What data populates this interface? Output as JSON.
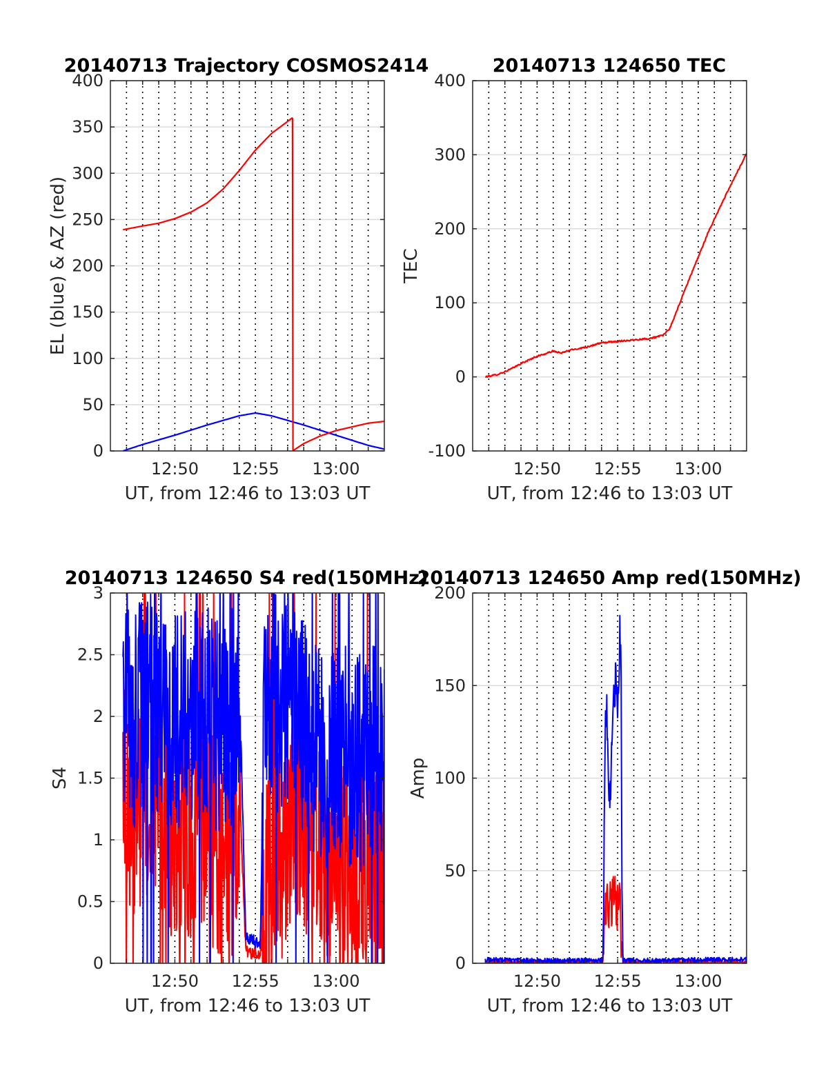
{
  "figure": {
    "subplot_titles": [
      "20140713 Trajectory COSMOS2414",
      "20140713 124650 TEC",
      "20140713 124650 S4 red(150MHz)",
      "20140713 124650 Amp red(150MHz)"
    ]
  },
  "chart_data": [
    {
      "type": "line",
      "title": "20140713 Trajectory COSMOS2414",
      "xlabel": "UT, from 12:46 to 13:03 UT",
      "ylabel": "EL (blue) & AZ (red)",
      "x_unit": "minutes after 12:46 UT",
      "xlim": [
        0,
        17
      ],
      "ylim": [
        0,
        400
      ],
      "x_ticks": [
        {
          "value": 4,
          "label": "12:50"
        },
        {
          "value": 9,
          "label": "12:55"
        },
        {
          "value": 14,
          "label": "13:00"
        }
      ],
      "y_ticks": [
        "0",
        "50",
        "100",
        "150",
        "200",
        "250",
        "300",
        "350",
        "400"
      ],
      "y_tick_values": [
        0,
        50,
        100,
        150,
        200,
        250,
        300,
        350,
        400
      ],
      "grid": {
        "horizontal": "solid light gray",
        "vertical": "dotted black every minute"
      },
      "series": [
        {
          "color": "#0000ff",
          "x": [
            0.78,
            2,
            4,
            6,
            8,
            9,
            10,
            12,
            14,
            16,
            17
          ],
          "y": [
            0,
            7,
            17,
            28,
            38,
            41,
            38,
            28,
            17,
            6,
            2
          ]
        },
        {
          "color": "#ff0000",
          "x": [
            0.78,
            2,
            3,
            4,
            5,
            6,
            7,
            8,
            9,
            10,
            11,
            11.3
          ],
          "y": [
            239,
            243,
            246,
            251,
            258,
            268,
            283,
            303,
            325,
            343,
            356,
            360
          ]
        },
        {
          "color": "#ff0000",
          "x": [
            11.3,
            11.31,
            12,
            13,
            14,
            15,
            16,
            17
          ],
          "y": [
            360,
            0,
            8,
            16,
            22,
            26,
            30,
            32
          ]
        }
      ]
    },
    {
      "type": "line",
      "title": "20140713 124650 TEC",
      "xlabel": "UT, from 12:46 to 13:03 UT",
      "ylabel": "TEC",
      "x_unit": "minutes after 12:46 UT",
      "xlim": [
        0,
        17
      ],
      "ylim": [
        -100,
        400
      ],
      "x_ticks": [
        {
          "value": 4,
          "label": "12:50"
        },
        {
          "value": 9,
          "label": "12:55"
        },
        {
          "value": 14,
          "label": "13:00"
        }
      ],
      "y_ticks": [
        "-100",
        "0",
        "100",
        "200",
        "300",
        "400"
      ],
      "y_tick_values": [
        -100,
        0,
        100,
        200,
        300,
        400
      ],
      "grid": {
        "horizontal": "solid light gray",
        "vertical": "dotted black every minute"
      },
      "series": [
        {
          "color": "#ff0000",
          "x": [
            0.78,
            1.5,
            2,
            2.5,
            3,
            4,
            4.5,
            5,
            5.5,
            6,
            7,
            8,
            9,
            10,
            11,
            11.8,
            12.2,
            12.6,
            13,
            13.4,
            14,
            14.6,
            15,
            15.5,
            16,
            17
          ],
          "y": [
            0,
            3,
            7,
            12,
            18,
            28,
            31,
            35,
            32,
            36,
            40,
            46,
            48,
            50,
            52,
            56,
            64,
            85,
            108,
            130,
            162,
            194,
            213,
            236,
            258,
            302
          ]
        }
      ]
    },
    {
      "type": "line",
      "title": "20140713 124650 S4 red(150MHz)",
      "xlabel": "UT, from 12:46 to 13:03 UT",
      "ylabel": "S4",
      "x_unit": "minutes after 12:46 UT",
      "xlim": [
        0,
        17
      ],
      "ylim": [
        0,
        3
      ],
      "x_ticks": [
        {
          "value": 4,
          "label": "12:50"
        },
        {
          "value": 9,
          "label": "12:55"
        },
        {
          "value": 14,
          "label": "13:00"
        }
      ],
      "y_ticks": [
        "0",
        "0.5",
        "1",
        "1.5",
        "2",
        "2.5",
        "3"
      ],
      "y_tick_values": [
        0,
        0.5,
        1,
        1.5,
        2,
        2.5,
        3
      ],
      "grid": {
        "horizontal": "solid light gray",
        "vertical": "dotted black every minute"
      },
      "series": [
        {
          "color": "#ff0000",
          "description": "noisy S4 trace",
          "x": [
            0.78,
            1.5,
            2.5,
            3.5,
            4.5,
            5.5,
            6.5,
            7.5,
            8.1,
            8.4,
            8.9,
            9.3,
            9.6,
            10.5,
            11.5,
            12.5,
            13.5,
            14.5,
            15.5,
            16.5,
            17
          ],
          "y": [
            1.6,
            1.2,
            1.4,
            1.1,
            1.0,
            1.2,
            1.0,
            0.9,
            1.1,
            0.1,
            0.08,
            0.07,
            0.5,
            0.9,
            1.1,
            1.0,
            0.9,
            0.8,
            0.75,
            0.7,
            0.65
          ]
        },
        {
          "color": "#0000ff",
          "description": "noisy S4 trace",
          "x": [
            0.78,
            1.5,
            2.5,
            3.5,
            4.5,
            5.5,
            6.5,
            7.5,
            8.1,
            8.4,
            8.9,
            9.3,
            9.6,
            10.5,
            11.5,
            12.5,
            13.5,
            14.5,
            15.5,
            16.5,
            17
          ],
          "y": [
            2.2,
            2.0,
            2.1,
            1.9,
            2.0,
            2.1,
            1.9,
            2.0,
            1.8,
            0.2,
            0.18,
            0.15,
            2.4,
            2.0,
            2.1,
            1.8,
            1.6,
            1.7,
            1.6,
            1.7,
            1.6
          ]
        }
      ]
    },
    {
      "type": "line",
      "title": "20140713 124650 Amp red(150MHz)",
      "xlabel": "UT, from 12:46 to 13:03 UT",
      "ylabel": "Amp",
      "x_unit": "minutes after 12:46 UT",
      "xlim": [
        0,
        17
      ],
      "ylim": [
        0,
        200
      ],
      "x_ticks": [
        {
          "value": 4,
          "label": "12:50"
        },
        {
          "value": 9,
          "label": "12:55"
        },
        {
          "value": 14,
          "label": "13:00"
        }
      ],
      "y_ticks": [
        "0",
        "50",
        "100",
        "150",
        "200"
      ],
      "y_tick_values": [
        0,
        50,
        100,
        150,
        200
      ],
      "grid": {
        "horizontal": "solid light gray",
        "vertical": "dotted black every minute"
      },
      "series": [
        {
          "color": "#ff0000",
          "x": [
            0.78,
            5,
            8.1,
            8.25,
            8.4,
            8.6,
            8.8,
            9.0,
            9.1,
            9.2,
            9.3,
            17
          ],
          "y": [
            0.5,
            0.5,
            0.5,
            25,
            35,
            28,
            40,
            30,
            38,
            20,
            0.5,
            0.5
          ]
        },
        {
          "color": "#0000ff",
          "x": [
            0.78,
            3,
            6,
            8.0,
            8.1,
            8.2,
            8.3,
            8.5,
            8.7,
            8.9,
            9.0,
            9.1,
            9.2,
            9.25,
            9.35,
            12,
            15,
            17
          ],
          "y": [
            2,
            1.5,
            1.5,
            1.5,
            1.5,
            110,
            142,
            90,
            130,
            160,
            120,
            175,
            183,
            60,
            1.5,
            1.5,
            2,
            2
          ]
        }
      ]
    }
  ]
}
